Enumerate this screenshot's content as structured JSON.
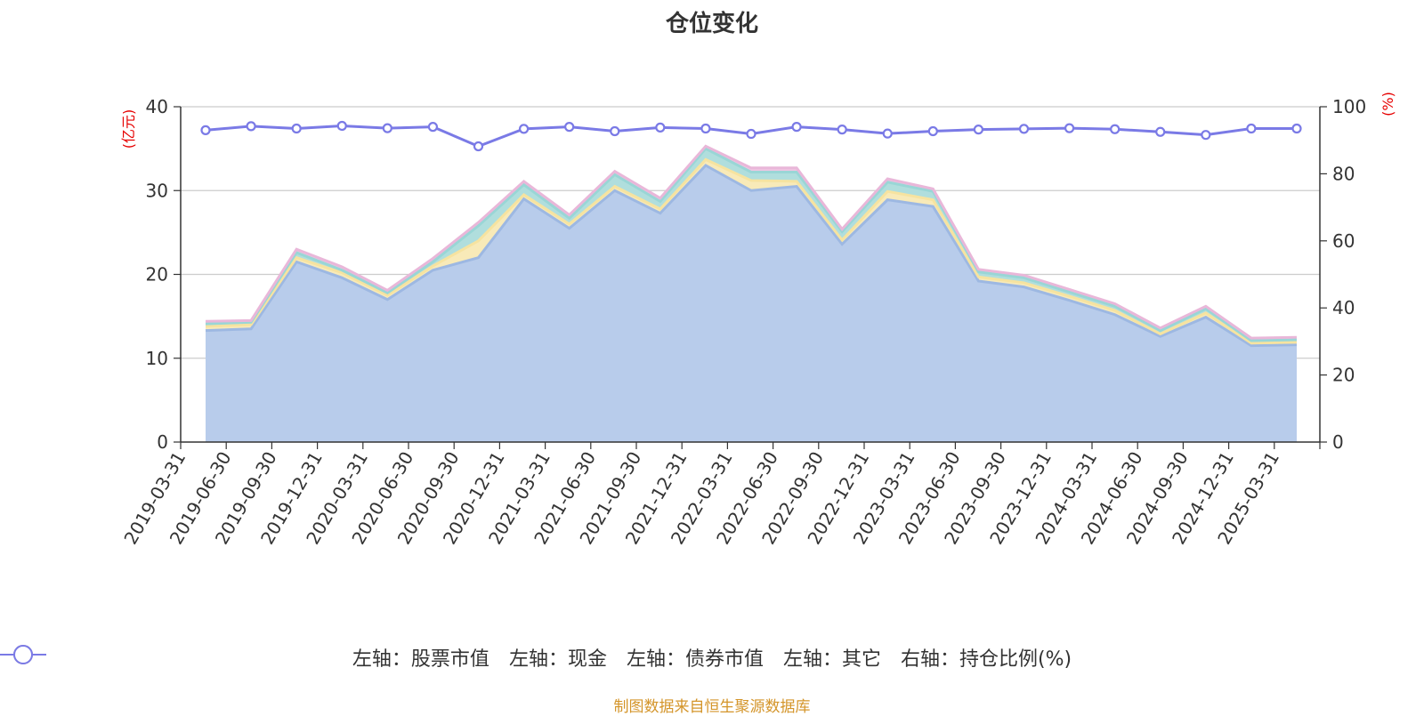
{
  "chart_data": {
    "type": "area",
    "title": "仓位变化",
    "left_unit": "(亿元)",
    "right_unit": "(%)",
    "ylim_left": [
      0,
      40
    ],
    "yticks_left": [
      "0",
      "10",
      "20",
      "30",
      "40"
    ],
    "ylim_right": [
      0,
      100
    ],
    "yticks_right": [
      "0",
      "20",
      "40",
      "60",
      "80",
      "100"
    ],
    "grid": true,
    "legend_position": "bottom",
    "categories": [
      "2019-03-31",
      "2019-06-30",
      "2019-09-30",
      "2019-12-31",
      "2020-03-31",
      "2020-06-30",
      "2020-09-30",
      "2020-12-31",
      "2021-03-31",
      "2021-06-30",
      "2021-09-30",
      "2021-12-31",
      "2022-03-31",
      "2022-06-30",
      "2022-09-30",
      "2022-12-31",
      "2023-03-31",
      "2023-06-30",
      "2023-09-30",
      "2023-12-31",
      "2024-03-31",
      "2024-06-30",
      "2024-09-30",
      "2024-12-31",
      "2025-03-31"
    ],
    "stacked_series": [
      {
        "name": "左轴：股票市值",
        "color": "#9db8e2",
        "fill": "#b8cceb",
        "values": [
          13.3,
          13.5,
          21.5,
          19.6,
          17.0,
          20.5,
          22.0,
          29.0,
          25.5,
          30.0,
          27.3,
          33.0,
          30.0,
          30.5,
          23.6,
          28.9,
          28.1,
          19.2,
          18.5,
          16.9,
          15.2,
          12.6,
          14.9,
          11.5,
          11.6
        ]
      },
      {
        "name": "左轴：现金",
        "color": "#f6e3a0",
        "fill": "#f8eab8",
        "values": [
          0.5,
          0.5,
          0.5,
          0.6,
          0.5,
          0.5,
          2.0,
          0.5,
          0.5,
          0.5,
          0.5,
          0.7,
          1.2,
          0.6,
          0.5,
          1.0,
          0.8,
          0.5,
          0.5,
          0.5,
          0.5,
          0.3,
          0.5,
          0.3,
          0.3
        ]
      },
      {
        "name": "左轴：债券市值",
        "color": "#99d6d6",
        "fill": "#b0dedd",
        "values": [
          0.3,
          0.3,
          0.6,
          0.3,
          0.3,
          0.5,
          1.8,
          1.2,
          0.7,
          1.4,
          0.9,
          1.3,
          1.0,
          1.1,
          1.0,
          1.1,
          1.0,
          0.6,
          0.6,
          0.5,
          0.5,
          0.4,
          0.5,
          0.3,
          0.3
        ]
      },
      {
        "name": "左轴：其它",
        "color": "#e9b7d9",
        "fill": "#eec6e2",
        "values": [
          0.3,
          0.2,
          0.4,
          0.4,
          0.3,
          0.4,
          0.4,
          0.4,
          0.4,
          0.4,
          0.4,
          0.3,
          0.5,
          0.5,
          0.3,
          0.4,
          0.3,
          0.3,
          0.3,
          0.3,
          0.3,
          0.3,
          0.3,
          0.3,
          0.3
        ]
      }
    ],
    "line_series": {
      "name": "右轴：持仓比例(%)",
      "color": "#7a7ae6",
      "axis": "right",
      "values": [
        93.0,
        94.2,
        93.5,
        94.3,
        93.6,
        94.0,
        88.2,
        93.4,
        94.0,
        92.7,
        93.8,
        93.5,
        91.9,
        94.0,
        93.2,
        92.0,
        92.7,
        93.2,
        93.4,
        93.6,
        93.3,
        92.5,
        91.6,
        93.5,
        93.5
      ]
    }
  },
  "legend": [
    {
      "label": "左轴：股票市值",
      "color": "#9db8e2",
      "hollow": false
    },
    {
      "label": "左轴：现金",
      "color": "#f6e3a0",
      "hollow": false
    },
    {
      "label": "左轴：债券市值",
      "color": "#99d6d6",
      "hollow": false
    },
    {
      "label": "左轴：其它",
      "color": "#e9b7d9",
      "hollow": false
    },
    {
      "label": "右轴：持仓比例(%)",
      "color": "#7a7ae6",
      "hollow": true
    }
  ],
  "source": "制图数据来自恒生聚源数据库"
}
